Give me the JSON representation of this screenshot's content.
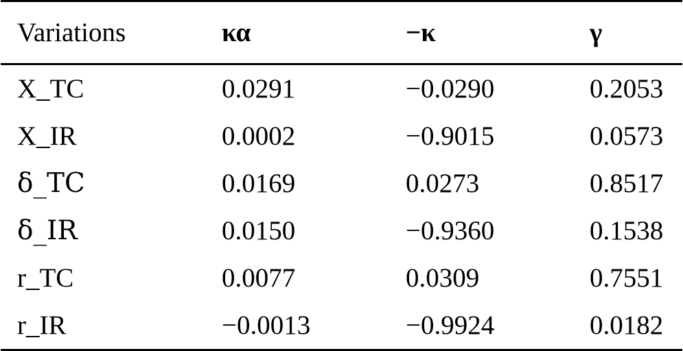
{
  "table": {
    "headers": [
      "Variations",
      "κα",
      "−κ",
      "γ"
    ],
    "rows": [
      [
        "X_TC",
        "0.0291",
        "−0.0290",
        "0.2053"
      ],
      [
        "X_IR",
        "0.0002",
        "−0.9015",
        "0.0573"
      ],
      [
        "δ_TC",
        "0.0169",
        "0.0273",
        "0.8517"
      ],
      [
        "δ_IR",
        "0.0150",
        "−0.9360",
        "0.1538"
      ],
      [
        "r_TC",
        "0.0077",
        "0.0309",
        "0.7551"
      ],
      [
        "r_IR",
        "−0.0013",
        "−0.9924",
        "0.0182"
      ]
    ]
  }
}
